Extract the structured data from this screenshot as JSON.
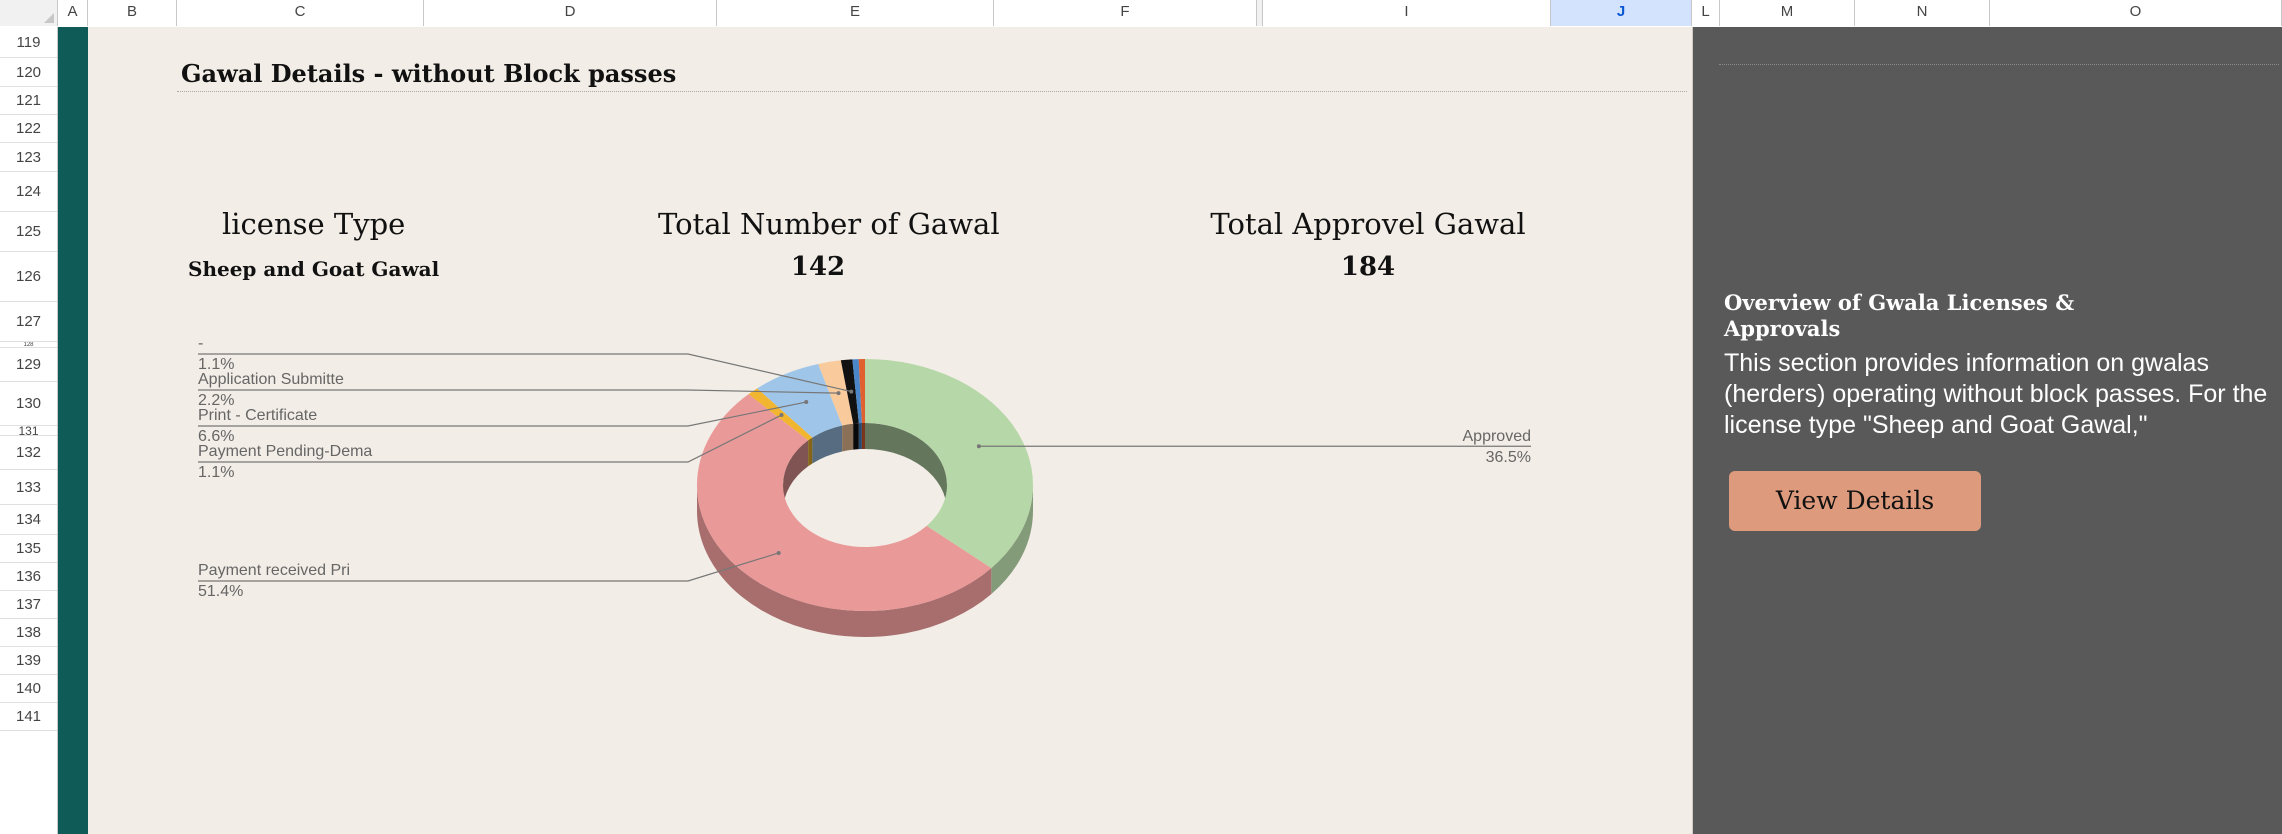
{
  "columns": [
    "A",
    "B",
    "C",
    "D",
    "E",
    "F",
    "I",
    "J",
    "L",
    "M",
    "N",
    "O"
  ],
  "selected_column": "J",
  "rows": [
    "119",
    "120",
    "121",
    "122",
    "123",
    "124",
    "125",
    "126",
    "127",
    "128",
    "129",
    "130",
    "131",
    "132",
    "133",
    "134",
    "135",
    "136",
    "137",
    "138",
    "139",
    "140",
    "141"
  ],
  "dashboard": {
    "title": "Gawal Details - without Block passes",
    "license_label": "license Type",
    "license_value": "Sheep and Goat Gawal",
    "total_label": "Total Number of Gawal",
    "total_value": "142",
    "approved_label": "Total Approvel Gawal",
    "approved_value": "184"
  },
  "chart_data": {
    "type": "pie",
    "style": "3d-donut",
    "slices": [
      {
        "label": "Approved",
        "value": 36.5,
        "display": "36.5%",
        "color": "#b6d7a8"
      },
      {
        "label": "Payment received Pri",
        "value": 51.4,
        "display": "51.4%",
        "color": "#ea9999"
      },
      {
        "label": "Payment Pending-Dema",
        "value": 1.1,
        "display": "1.1%",
        "color": "#f1b52f"
      },
      {
        "label": "Print - Certificate",
        "value": 6.6,
        "display": "6.6%",
        "color": "#9fc5e8"
      },
      {
        "label": "Application Submitte",
        "value": 2.2,
        "display": "2.2%",
        "color": "#f9cb9c"
      },
      {
        "label": "-",
        "value": 1.1,
        "display": "1.1%",
        "color": "#111111"
      },
      {
        "label": "",
        "value": 0.6,
        "display": "",
        "color": "#4a86c8"
      },
      {
        "label": "",
        "value": 0.6,
        "display": "",
        "color": "#e06030"
      }
    ]
  },
  "overview": {
    "title": "Overview of Gwala Licenses & Approvals",
    "body": "This section provides information on gwalas (herders) operating without block passes. For the license type \"Sheep and Goat Gawal,\"",
    "button": "View Details"
  },
  "colors": {
    "sheet_bg": "#f2ede6",
    "teal_band": "#0f5b57",
    "panel_bg": "#595959",
    "button_bg": "#dd9a7c",
    "selected_header": "#d3e3fd"
  }
}
